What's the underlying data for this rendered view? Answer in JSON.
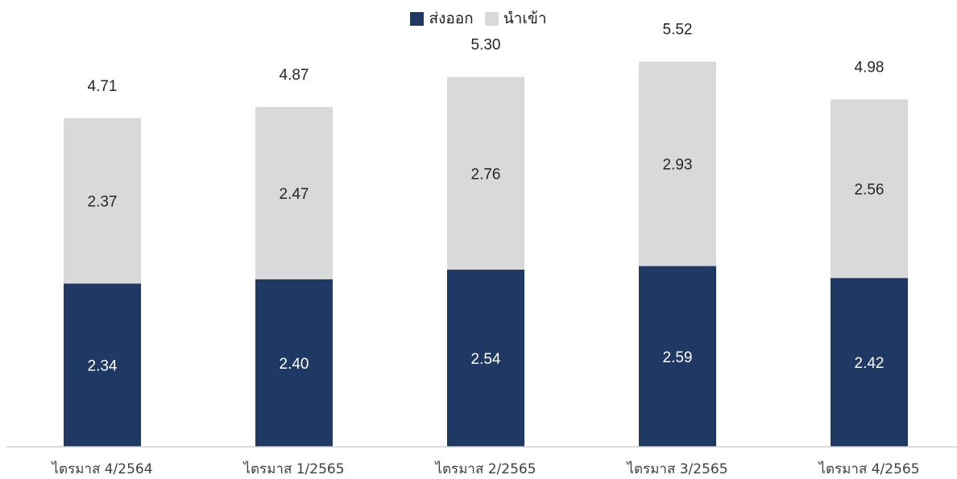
{
  "chart_data": {
    "type": "bar",
    "stacked": true,
    "categories": [
      "ไตรมาส 4/2564",
      "ไตรมาส 1/2565",
      "ไตรมาส 2/2565",
      "ไตรมาส 3/2565",
      "ไตรมาส 4/2565"
    ],
    "series": [
      {
        "name": "ส่งออก",
        "values": [
          2.34,
          2.4,
          2.54,
          2.59,
          2.42
        ],
        "color": "#1f3864"
      },
      {
        "name": "นำเข้า",
        "values": [
          2.37,
          2.47,
          2.76,
          2.93,
          2.56
        ],
        "color": "#d9d9d9"
      }
    ],
    "totals": [
      "4.71",
      "4.87",
      "5.30",
      "5.52",
      "4.98"
    ],
    "value_labels": {
      "export": [
        "2.34",
        "2.40",
        "2.54",
        "2.59",
        "2.42"
      ],
      "import": [
        "2.37",
        "2.47",
        "2.76",
        "2.93",
        "2.56"
      ]
    },
    "ylim": [
      0,
      5.52
    ],
    "grid": false,
    "legend_position": "top-center"
  }
}
